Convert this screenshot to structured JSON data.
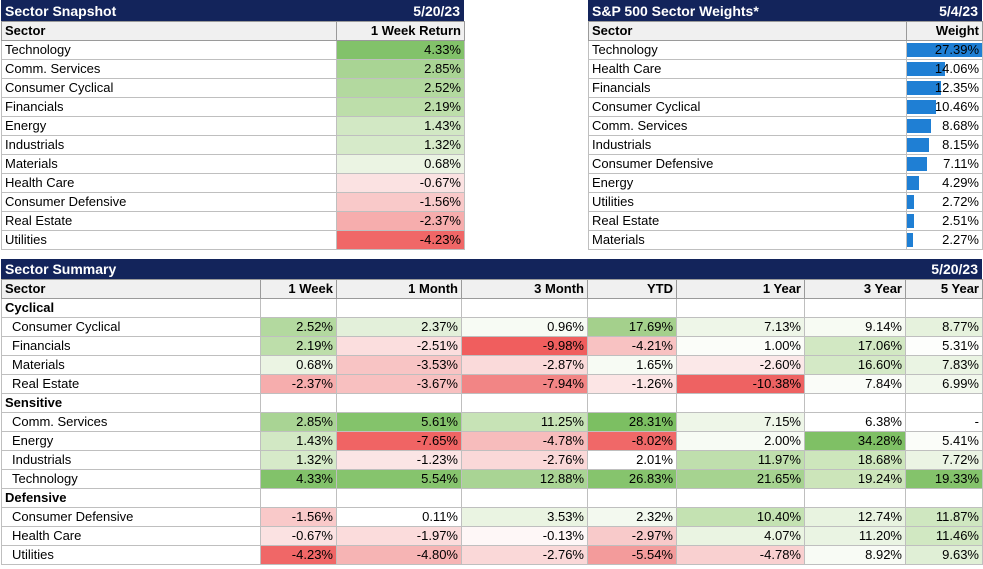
{
  "snapshot": {
    "title": "Sector Snapshot",
    "date": "5/20/23",
    "headers": [
      "Sector",
      "1 Week Return"
    ],
    "rows": [
      {
        "sector": "Technology",
        "value": "4.33%",
        "color": "#82c26a"
      },
      {
        "sector": "Comm. Services",
        "value": "2.85%",
        "color": "#a9d494"
      },
      {
        "sector": "Consumer Cyclical",
        "value": "2.52%",
        "color": "#b3d99f"
      },
      {
        "sector": "Financials",
        "value": "2.19%",
        "color": "#bddeaa"
      },
      {
        "sector": "Energy",
        "value": "1.43%",
        "color": "#d2e8c4"
      },
      {
        "sector": "Industrials",
        "value": "1.32%",
        "color": "#d6eac9"
      },
      {
        "sector": "Materials",
        "value": "0.68%",
        "color": "#ebf4e3"
      },
      {
        "sector": "Health Care",
        "value": "-0.67%",
        "color": "#fbe2e2"
      },
      {
        "sector": "Consumer Defensive",
        "value": "-1.56%",
        "color": "#f9c9c9"
      },
      {
        "sector": "Real Estate",
        "value": "-2.37%",
        "color": "#f6adad"
      },
      {
        "sector": "Utilities",
        "value": "-4.23%",
        "color": "#f06767"
      }
    ]
  },
  "weights": {
    "title": "S&P 500 Sector Weights*",
    "date": "5/4/23",
    "headers": [
      "Sector",
      "Weight"
    ],
    "rows": [
      {
        "sector": "Technology",
        "value": "27.39%",
        "fraction": 1.0
      },
      {
        "sector": "Health Care",
        "value": "14.06%",
        "fraction": 0.513
      },
      {
        "sector": "Financials",
        "value": "12.35%",
        "fraction": 0.451
      },
      {
        "sector": "Consumer Cyclical",
        "value": "10.46%",
        "fraction": 0.382
      },
      {
        "sector": "Comm. Services",
        "value": "8.68%",
        "fraction": 0.317
      },
      {
        "sector": "Industrials",
        "value": "8.15%",
        "fraction": 0.298
      },
      {
        "sector": "Consumer Defensive",
        "value": "7.11%",
        "fraction": 0.26
      },
      {
        "sector": "Energy",
        "value": "4.29%",
        "fraction": 0.157
      },
      {
        "sector": "Utilities",
        "value": "2.72%",
        "fraction": 0.099
      },
      {
        "sector": "Real Estate",
        "value": "2.51%",
        "fraction": 0.092
      },
      {
        "sector": "Materials",
        "value": "2.27%",
        "fraction": 0.083
      }
    ],
    "bar_color": "#1f7fd4"
  },
  "summary": {
    "title": "Sector Summary",
    "date": "5/20/23",
    "headers": [
      "Sector",
      "1 Week",
      "1 Month",
      "3 Month",
      "YTD",
      "1 Year",
      "3 Year",
      "5 Year"
    ],
    "groups": [
      {
        "name": "Cyclical",
        "rows": [
          {
            "sector": "Consumer Cyclical",
            "cells": [
              {
                "v": "2.52%",
                "c": "#b3d99f"
              },
              {
                "v": "2.37%",
                "c": "#e3f0da"
              },
              {
                "v": "0.96%",
                "c": "#f7fbf4"
              },
              {
                "v": "17.69%",
                "c": "#a4d08c"
              },
              {
                "v": "7.13%",
                "c": "#eef6e8"
              },
              {
                "v": "9.14%",
                "c": "#f7fbf3"
              },
              {
                "v": "8.77%",
                "c": "#e6f2dd"
              }
            ]
          },
          {
            "sector": "Financials",
            "cells": [
              {
                "v": "2.19%",
                "c": "#bddeaa"
              },
              {
                "v": "-2.51%",
                "c": "#fbdede"
              },
              {
                "v": "-9.98%",
                "c": "#f05e5e"
              },
              {
                "v": "-4.21%",
                "c": "#f8c2c2"
              },
              {
                "v": "1.00%",
                "c": "#fbfdf9"
              },
              {
                "v": "17.06%",
                "c": "#d2e8c3"
              },
              {
                "v": "5.31%",
                "c": "#fdfefc"
              }
            ]
          },
          {
            "sector": "Materials",
            "cells": [
              {
                "v": "0.68%",
                "c": "#ebf4e3"
              },
              {
                "v": "-3.53%",
                "c": "#f8c4c4"
              },
              {
                "v": "-2.87%",
                "c": "#fadada"
              },
              {
                "v": "1.65%",
                "c": "#f7fbf4"
              },
              {
                "v": "-2.60%",
                "c": "#fbe8e8"
              },
              {
                "v": "16.60%",
                "c": "#d4e9c6"
              },
              {
                "v": "7.83%",
                "c": "#eaf4e3"
              }
            ]
          },
          {
            "sector": "Real Estate",
            "cells": [
              {
                "v": "-2.37%",
                "c": "#f6adad"
              },
              {
                "v": "-3.67%",
                "c": "#f8c0c0"
              },
              {
                "v": "-7.94%",
                "c": "#f28585"
              },
              {
                "v": "-1.26%",
                "c": "#fce5e5"
              },
              {
                "v": "-10.38%",
                "c": "#ee6262"
              },
              {
                "v": "7.84%",
                "c": "#fafcf8"
              },
              {
                "v": "6.99%",
                "c": "#f2f8ed"
              }
            ]
          }
        ]
      },
      {
        "name": "Sensitive",
        "rows": [
          {
            "sector": "Comm. Services",
            "cells": [
              {
                "v": "2.85%",
                "c": "#a9d494"
              },
              {
                "v": "5.61%",
                "c": "#84c36b"
              },
              {
                "v": "11.25%",
                "c": "#c7e3b6"
              },
              {
                "v": "28.31%",
                "c": "#7cbf62"
              },
              {
                "v": "7.15%",
                "c": "#eef6e8"
              },
              {
                "v": "6.38%",
                "c": "#ffffff"
              },
              {
                "v": "-",
                "c": "#ffffff"
              }
            ]
          },
          {
            "sector": "Energy",
            "cells": [
              {
                "v": "1.43%",
                "c": "#d2e8c4"
              },
              {
                "v": "-7.65%",
                "c": "#f06464"
              },
              {
                "v": "-4.78%",
                "c": "#f7bcbc"
              },
              {
                "v": "-8.02%",
                "c": "#f06868"
              },
              {
                "v": "2.00%",
                "c": "#f7fbf4"
              },
              {
                "v": "34.28%",
                "c": "#7fc065"
              },
              {
                "v": "5.41%",
                "c": "#fbfdf9"
              }
            ]
          },
          {
            "sector": "Industrials",
            "cells": [
              {
                "v": "1.32%",
                "c": "#d6eac9"
              },
              {
                "v": "-1.23%",
                "c": "#fbe5e5"
              },
              {
                "v": "-2.76%",
                "c": "#fad8d8"
              },
              {
                "v": "2.01%",
                "c": "#ffffff"
              },
              {
                "v": "11.97%",
                "c": "#bfdfad"
              },
              {
                "v": "18.68%",
                "c": "#cde6bc"
              },
              {
                "v": "7.72%",
                "c": "#ebf4e4"
              }
            ]
          },
          {
            "sector": "Technology",
            "cells": [
              {
                "v": "4.33%",
                "c": "#82c26a"
              },
              {
                "v": "5.54%",
                "c": "#86c46d"
              },
              {
                "v": "12.88%",
                "c": "#a9d494"
              },
              {
                "v": "26.83%",
                "c": "#86c46d"
              },
              {
                "v": "21.65%",
                "c": "#a6d390"
              },
              {
                "v": "19.24%",
                "c": "#cce5ba"
              },
              {
                "v": "19.33%",
                "c": "#84c36b"
              }
            ]
          }
        ]
      },
      {
        "name": "Defensive",
        "rows": [
          {
            "sector": "Consumer Defensive",
            "cells": [
              {
                "v": "-1.56%",
                "c": "#f9c9c9"
              },
              {
                "v": "0.11%",
                "c": "#ffffff"
              },
              {
                "v": "3.53%",
                "c": "#eaf4e2"
              },
              {
                "v": "2.32%",
                "c": "#f3f9ef"
              },
              {
                "v": "10.40%",
                "c": "#c4e2b2"
              },
              {
                "v": "12.74%",
                "c": "#e8f3e0"
              },
              {
                "v": "11.87%",
                "c": "#cfe7c0"
              }
            ]
          },
          {
            "sector": "Health Care",
            "cells": [
              {
                "v": "-0.67%",
                "c": "#fbe2e2"
              },
              {
                "v": "-1.97%",
                "c": "#fbdcdc"
              },
              {
                "v": "-0.13%",
                "c": "#fef7f7"
              },
              {
                "v": "-2.97%",
                "c": "#f8caca"
              },
              {
                "v": "4.07%",
                "c": "#eaf4e2"
              },
              {
                "v": "11.20%",
                "c": "#eaf4e3"
              },
              {
                "v": "11.46%",
                "c": "#d1e8c2"
              }
            ]
          },
          {
            "sector": "Utilities",
            "cells": [
              {
                "v": "-4.23%",
                "c": "#f06767"
              },
              {
                "v": "-4.80%",
                "c": "#f6b4b4"
              },
              {
                "v": "-2.76%",
                "c": "#fad8d8"
              },
              {
                "v": "-5.54%",
                "c": "#f39b9b"
              },
              {
                "v": "-4.78%",
                "c": "#f9d0d0"
              },
              {
                "v": "8.92%",
                "c": "#f8fbf5"
              },
              {
                "v": "9.63%",
                "c": "#e0efd6"
              }
            ]
          }
        ]
      }
    ]
  }
}
